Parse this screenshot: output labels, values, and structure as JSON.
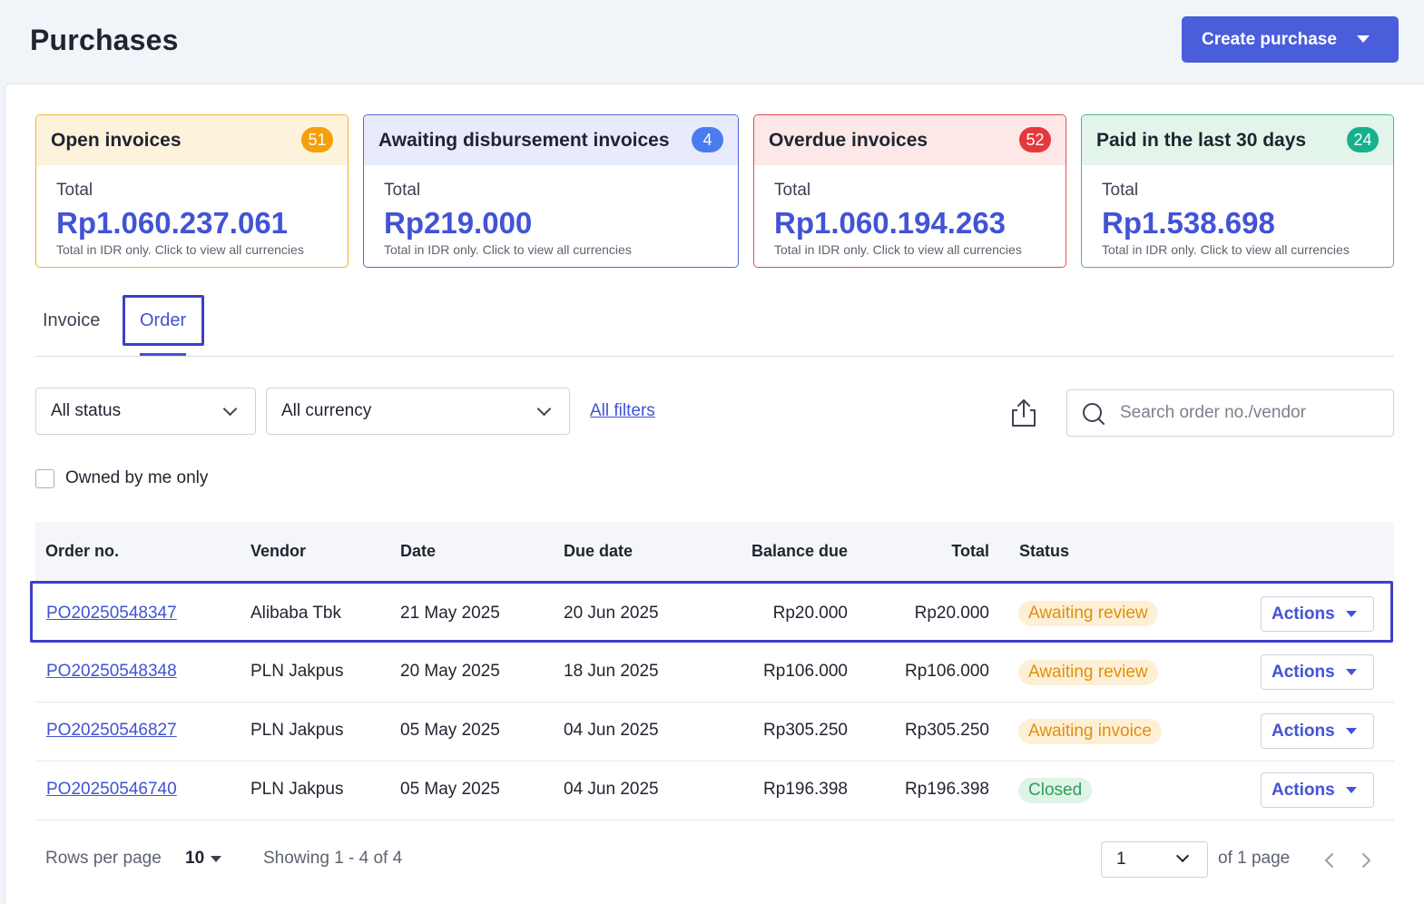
{
  "header": {
    "title": "Purchases",
    "create_label": "Create purchase"
  },
  "cards": [
    {
      "title": "Open invoices",
      "count": "51",
      "total_label": "Total",
      "total": "Rp1.060.237.061",
      "note": "Total in IDR only. Click to view all currencies"
    },
    {
      "title": "Awaiting disbursement invoices",
      "count": "4",
      "total_label": "Total",
      "total": "Rp219.000",
      "note": "Total in IDR only. Click to view all currencies"
    },
    {
      "title": "Overdue invoices",
      "count": "52",
      "total_label": "Total",
      "total": "Rp1.060.194.263",
      "note": "Total in IDR only. Click to view all currencies"
    },
    {
      "title": "Paid in the last 30 days",
      "count": "24",
      "total_label": "Total",
      "total": "Rp1.538.698",
      "note": "Total in IDR only. Click to view all currencies"
    }
  ],
  "tabs": [
    {
      "label": "Invoice"
    },
    {
      "label": "Order",
      "active": true
    }
  ],
  "filters": {
    "status": "All status",
    "currency": "All currency",
    "all_filters": "All filters",
    "search_placeholder": "Search order no./vendor",
    "owned_label": "Owned by me only"
  },
  "table": {
    "headers": {
      "order_no": "Order no.",
      "vendor": "Vendor",
      "date": "Date",
      "due_date": "Due date",
      "balance_due": "Balance due",
      "total": "Total",
      "status": "Status"
    },
    "rows": [
      {
        "order_no": "PO20250548347",
        "vendor": "Alibaba Tbk",
        "date": "21 May 2025",
        "due_date": "20 Jun 2025",
        "balance_due": "Rp20.000",
        "total": "Rp20.000",
        "status": "Awaiting review",
        "action": "Actions"
      },
      {
        "order_no": "PO20250548348",
        "vendor": "PLN Jakpus",
        "date": "20 May 2025",
        "due_date": "18 Jun 2025",
        "balance_due": "Rp106.000",
        "total": "Rp106.000",
        "status": "Awaiting review",
        "action": "Actions"
      },
      {
        "order_no": "PO20250546827",
        "vendor": "PLN Jakpus",
        "date": "05 May 2025",
        "due_date": "04 Jun 2025",
        "balance_due": "Rp305.250",
        "total": "Rp305.250",
        "status": "Awaiting invoice",
        "action": "Actions"
      },
      {
        "order_no": "PO20250546740",
        "vendor": "PLN Jakpus",
        "date": "05 May 2025",
        "due_date": "04 Jun 2025",
        "balance_due": "Rp196.398",
        "total": "Rp196.398",
        "status": "Closed",
        "action": "Actions"
      }
    ]
  },
  "pagination": {
    "rows_label": "Rows per page",
    "rows_value": "10",
    "showing": "Showing 1 - 4 of 4",
    "page": "1",
    "of_pages": "of 1 page"
  },
  "colors": {
    "accent": "#4a5ddb",
    "link": "#4253d4",
    "open": "#f59f0b",
    "awaiting": "#4a7cf0",
    "overdue": "#e5383b",
    "paid": "#17b08f"
  },
  "icons": [
    "chevron-down-icon",
    "export-icon",
    "search-icon",
    "chevron-left-icon",
    "chevron-right-icon",
    "caret-down-icon"
  ]
}
